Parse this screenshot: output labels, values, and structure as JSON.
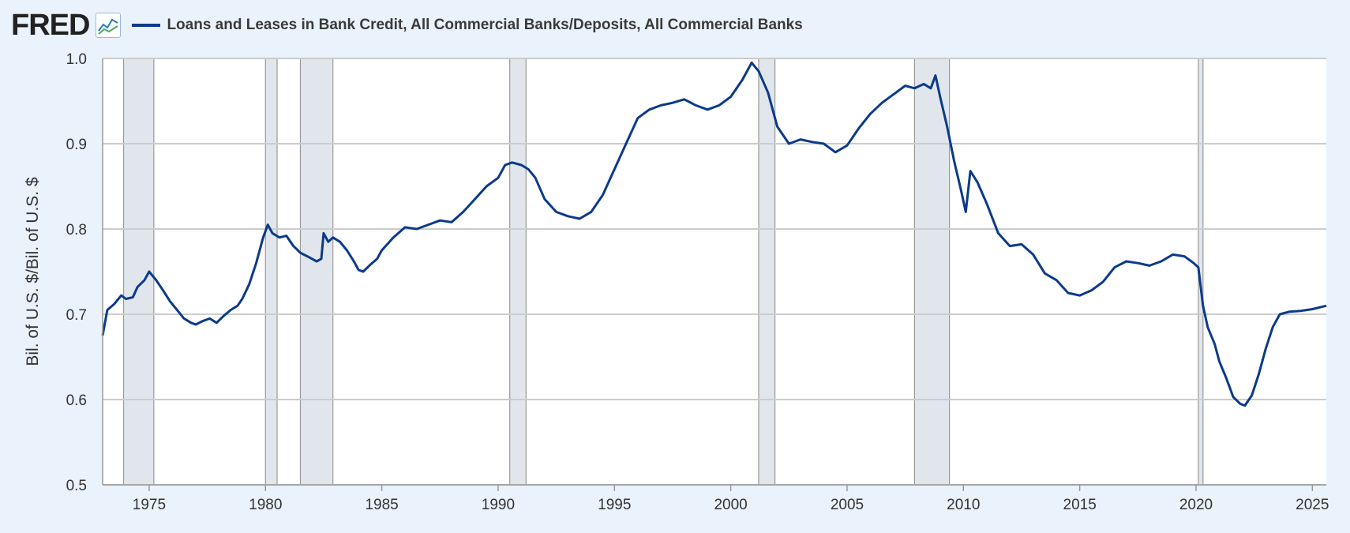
{
  "header": {
    "logo_text": "FRED",
    "logo_icon": "line-chart-icon",
    "series_label": "Loans and Leases in Bank Credit, All Commercial Banks/Deposits, All Commercial Banks"
  },
  "colors": {
    "line": "#0b3a8a",
    "recession": "#e1e6ec",
    "grid": "#cccccc",
    "background": "#eaf2fb",
    "plot": "#ffffff"
  },
  "chart_data": {
    "type": "line",
    "title": "",
    "xlabel": "",
    "ylabel": "Bil. of U.S. $/Bil. of U.S. $",
    "xlim": [
      1973.0,
      2025.6
    ],
    "ylim": [
      0.5,
      1.0
    ],
    "x_ticks": [
      1975,
      1980,
      1985,
      1990,
      1995,
      2000,
      2005,
      2010,
      2015,
      2020,
      2025
    ],
    "y_ticks": [
      "0.5",
      "0.6",
      "0.7",
      "0.8",
      "0.9",
      "1.0"
    ],
    "grid": true,
    "legend_position": "top-left",
    "recessions": [
      [
        1973.9,
        1975.2
      ],
      [
        1980.0,
        1980.5
      ],
      [
        1981.5,
        1982.9
      ],
      [
        1990.5,
        1991.2
      ],
      [
        2001.2,
        2001.9
      ],
      [
        2007.9,
        2009.4
      ],
      [
        2020.1,
        2020.3
      ]
    ],
    "series": [
      {
        "name": "Loans and Leases in Bank Credit, All Commercial Banks/Deposits, All Commercial Banks",
        "points": [
          [
            1973.0,
            0.675
          ],
          [
            1973.2,
            0.705
          ],
          [
            1973.5,
            0.712
          ],
          [
            1973.8,
            0.722
          ],
          [
            1974.0,
            0.718
          ],
          [
            1974.3,
            0.72
          ],
          [
            1974.5,
            0.732
          ],
          [
            1974.8,
            0.74
          ],
          [
            1975.0,
            0.75
          ],
          [
            1975.3,
            0.74
          ],
          [
            1975.6,
            0.728
          ],
          [
            1975.9,
            0.715
          ],
          [
            1976.2,
            0.705
          ],
          [
            1976.5,
            0.695
          ],
          [
            1976.8,
            0.69
          ],
          [
            1977.0,
            0.688
          ],
          [
            1977.3,
            0.692
          ],
          [
            1977.6,
            0.695
          ],
          [
            1977.9,
            0.69
          ],
          [
            1978.2,
            0.698
          ],
          [
            1978.5,
            0.705
          ],
          [
            1978.8,
            0.71
          ],
          [
            1979.0,
            0.718
          ],
          [
            1979.3,
            0.735
          ],
          [
            1979.6,
            0.76
          ],
          [
            1979.9,
            0.79
          ],
          [
            1980.1,
            0.805
          ],
          [
            1980.3,
            0.795
          ],
          [
            1980.6,
            0.79
          ],
          [
            1980.9,
            0.792
          ],
          [
            1981.2,
            0.78
          ],
          [
            1981.5,
            0.772
          ],
          [
            1981.8,
            0.768
          ],
          [
            1982.0,
            0.765
          ],
          [
            1982.2,
            0.762
          ],
          [
            1982.4,
            0.765
          ],
          [
            1982.5,
            0.795
          ],
          [
            1982.7,
            0.785
          ],
          [
            1982.9,
            0.79
          ],
          [
            1983.2,
            0.785
          ],
          [
            1983.5,
            0.775
          ],
          [
            1983.8,
            0.762
          ],
          [
            1984.0,
            0.752
          ],
          [
            1984.2,
            0.75
          ],
          [
            1984.5,
            0.758
          ],
          [
            1984.8,
            0.765
          ],
          [
            1985.0,
            0.775
          ],
          [
            1985.5,
            0.79
          ],
          [
            1986.0,
            0.802
          ],
          [
            1986.5,
            0.8
          ],
          [
            1987.0,
            0.805
          ],
          [
            1987.5,
            0.81
          ],
          [
            1988.0,
            0.808
          ],
          [
            1988.5,
            0.82
          ],
          [
            1989.0,
            0.835
          ],
          [
            1989.5,
            0.85
          ],
          [
            1990.0,
            0.86
          ],
          [
            1990.3,
            0.875
          ],
          [
            1990.6,
            0.878
          ],
          [
            1991.0,
            0.875
          ],
          [
            1991.3,
            0.87
          ],
          [
            1991.6,
            0.86
          ],
          [
            1992.0,
            0.835
          ],
          [
            1992.5,
            0.82
          ],
          [
            1993.0,
            0.815
          ],
          [
            1993.5,
            0.812
          ],
          [
            1994.0,
            0.82
          ],
          [
            1994.5,
            0.84
          ],
          [
            1995.0,
            0.87
          ],
          [
            1995.5,
            0.9
          ],
          [
            1996.0,
            0.93
          ],
          [
            1996.5,
            0.94
          ],
          [
            1997.0,
            0.945
          ],
          [
            1997.5,
            0.948
          ],
          [
            1998.0,
            0.952
          ],
          [
            1998.5,
            0.945
          ],
          [
            1999.0,
            0.94
          ],
          [
            1999.5,
            0.945
          ],
          [
            2000.0,
            0.955
          ],
          [
            2000.5,
            0.975
          ],
          [
            2000.9,
            0.995
          ],
          [
            2001.2,
            0.985
          ],
          [
            2001.6,
            0.96
          ],
          [
            2002.0,
            0.92
          ],
          [
            2002.5,
            0.9
          ],
          [
            2003.0,
            0.905
          ],
          [
            2003.5,
            0.902
          ],
          [
            2004.0,
            0.9
          ],
          [
            2004.5,
            0.89
          ],
          [
            2005.0,
            0.898
          ],
          [
            2005.5,
            0.918
          ],
          [
            2006.0,
            0.935
          ],
          [
            2006.5,
            0.948
          ],
          [
            2007.0,
            0.958
          ],
          [
            2007.5,
            0.968
          ],
          [
            2007.9,
            0.965
          ],
          [
            2008.3,
            0.97
          ],
          [
            2008.6,
            0.965
          ],
          [
            2008.8,
            0.98
          ],
          [
            2009.0,
            0.955
          ],
          [
            2009.3,
            0.92
          ],
          [
            2009.6,
            0.88
          ],
          [
            2009.9,
            0.845
          ],
          [
            2010.1,
            0.82
          ],
          [
            2010.3,
            0.868
          ],
          [
            2010.6,
            0.855
          ],
          [
            2011.0,
            0.83
          ],
          [
            2011.5,
            0.795
          ],
          [
            2012.0,
            0.78
          ],
          [
            2012.5,
            0.782
          ],
          [
            2013.0,
            0.77
          ],
          [
            2013.5,
            0.748
          ],
          [
            2014.0,
            0.74
          ],
          [
            2014.5,
            0.725
          ],
          [
            2015.0,
            0.722
          ],
          [
            2015.5,
            0.728
          ],
          [
            2016.0,
            0.738
          ],
          [
            2016.5,
            0.755
          ],
          [
            2017.0,
            0.762
          ],
          [
            2017.5,
            0.76
          ],
          [
            2018.0,
            0.757
          ],
          [
            2018.5,
            0.762
          ],
          [
            2019.0,
            0.77
          ],
          [
            2019.5,
            0.768
          ],
          [
            2019.9,
            0.76
          ],
          [
            2020.1,
            0.755
          ],
          [
            2020.3,
            0.71
          ],
          [
            2020.5,
            0.685
          ],
          [
            2020.8,
            0.665
          ],
          [
            2021.0,
            0.645
          ],
          [
            2021.3,
            0.625
          ],
          [
            2021.6,
            0.603
          ],
          [
            2021.9,
            0.595
          ],
          [
            2022.1,
            0.593
          ],
          [
            2022.4,
            0.605
          ],
          [
            2022.7,
            0.63
          ],
          [
            2023.0,
            0.66
          ],
          [
            2023.3,
            0.685
          ],
          [
            2023.6,
            0.7
          ],
          [
            2024.0,
            0.703
          ],
          [
            2024.5,
            0.704
          ],
          [
            2025.0,
            0.706
          ],
          [
            2025.6,
            0.71
          ]
        ]
      }
    ]
  }
}
